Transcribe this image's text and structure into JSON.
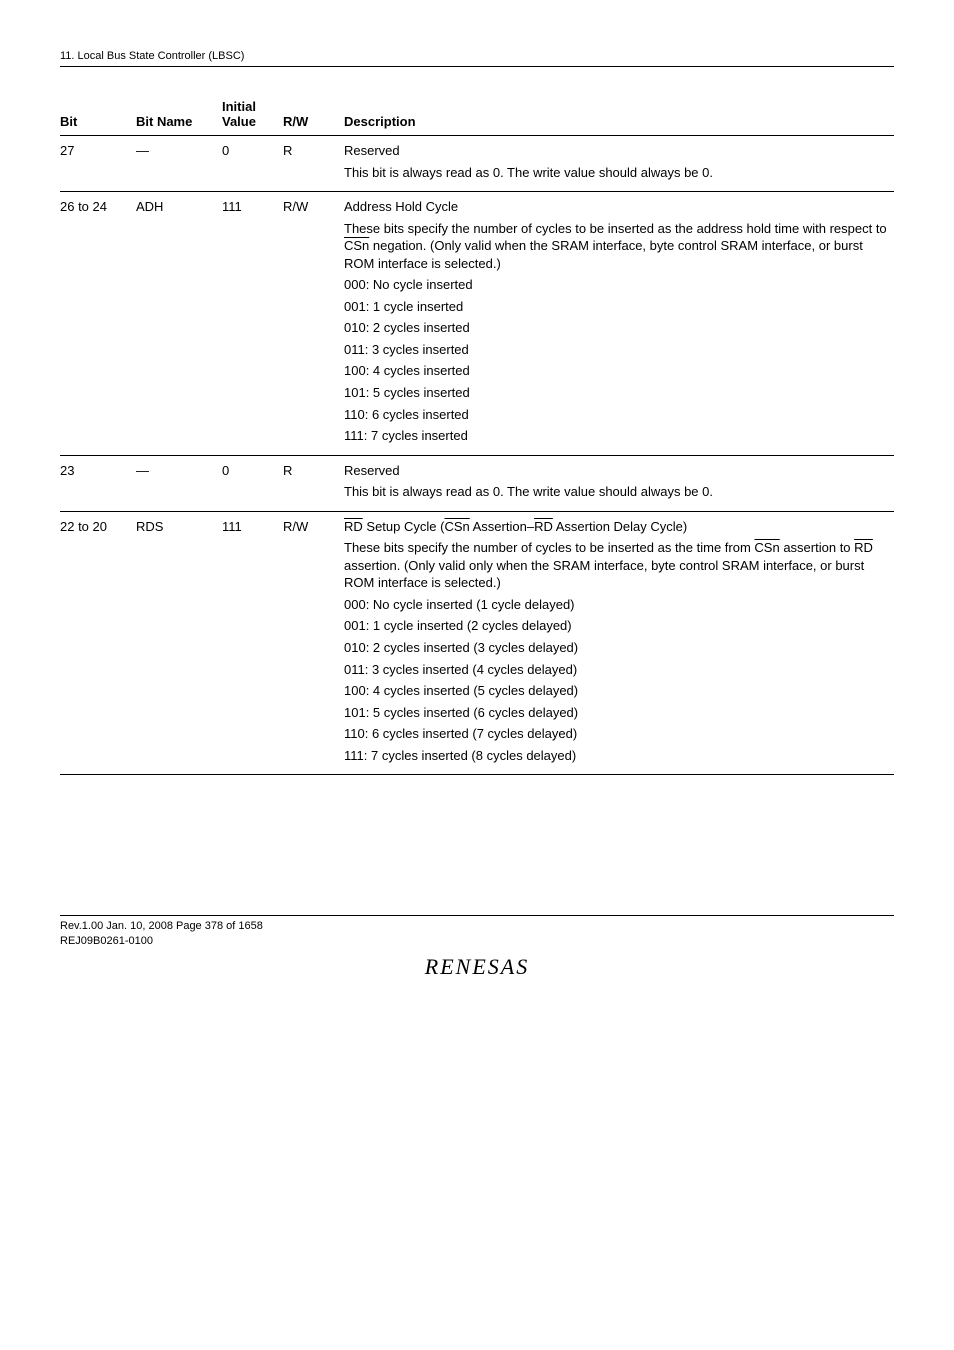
{
  "section_header": "11.   Local Bus State Controller (LBSC)",
  "columns": {
    "bit": "Bit",
    "name": "Bit Name",
    "initial_line1": "Initial",
    "initial_line2": "Value",
    "rw": "R/W",
    "desc": "Description"
  },
  "rows": {
    "r27": {
      "bit": "27",
      "name": "—",
      "initial": "0",
      "rw": "R",
      "d0": "Reserved",
      "d1": "This bit is always read as 0. The write value should always be 0."
    },
    "r26": {
      "bit": "26 to 24",
      "name": "ADH",
      "initial": "111",
      "rw": "R/W",
      "d0": "Address Hold Cycle",
      "d1a": "These bits specify the number of cycles to be inserted as the address hold time with respect to ",
      "d1b": "CSn",
      "d1c": " negation. (Only valid when the SRAM interface, byte control SRAM interface, or burst ROM interface is selected.)",
      "d2": "000: No cycle inserted",
      "d3": "001: 1 cycle inserted",
      "d4": "010: 2 cycles inserted",
      "d5": "011: 3 cycles inserted",
      "d6": "100: 4 cycles inserted",
      "d7": "101: 5 cycles inserted",
      "d8": "110: 6 cycles inserted",
      "d9": "111: 7 cycles inserted"
    },
    "r23": {
      "bit": "23",
      "name": "—",
      "initial": "0",
      "rw": "R",
      "d0": "Reserved",
      "d1": "This bit is always read as 0. The write value should always be 0."
    },
    "r22": {
      "bit": "22 to 20",
      "name": "RDS",
      "initial": "111",
      "rw": "R/W",
      "d0a": "RD",
      "d0b": " Setup Cycle (",
      "d0c": "CSn",
      "d0d": " Assertion–",
      "d0e": "RD",
      "d0f": " Assertion Delay Cycle)",
      "d1a": "These bits specify the number of cycles to be inserted as the time from ",
      "d1b": "CSn",
      "d1c": " assertion to ",
      "d1d": "RD",
      "d1e": " assertion. (Only valid only when the SRAM interface, byte control SRAM interface, or burst ROM interface is selected.)",
      "d2": "000: No cycle inserted (1 cycle delayed)",
      "d3": "001: 1 cycle inserted (2 cycles delayed)",
      "d4": "010: 2 cycles inserted (3 cycles delayed)",
      "d5": "011: 3 cycles inserted (4 cycles delayed)",
      "d6": "100: 4 cycles inserted (5 cycles delayed)",
      "d7": "101: 5 cycles inserted (6 cycles delayed)",
      "d8": "110: 6 cycles inserted (7 cycles delayed)",
      "d9": "111: 7 cycles inserted (8 cycles delayed)"
    }
  },
  "footer": {
    "line1": "Rev.1.00  Jan. 10, 2008  Page 378 of 1658",
    "line2": "REJ09B0261-0100",
    "logo": "RENESAS"
  }
}
